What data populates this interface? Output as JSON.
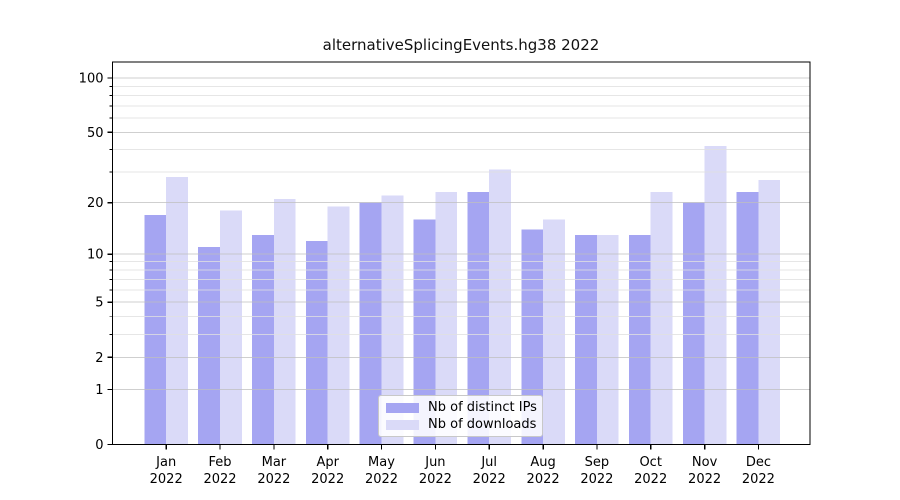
{
  "chart_data": {
    "type": "bar",
    "title": "alternativeSplicingEvents.hg38 2022",
    "categories": [
      "Jan",
      "Feb",
      "Mar",
      "Apr",
      "May",
      "Jun",
      "Jul",
      "Aug",
      "Sep",
      "Oct",
      "Nov",
      "Dec"
    ],
    "year": "2022",
    "series": [
      {
        "name": "Nb of distinct IPs",
        "color": "#a5a5f2",
        "values": [
          17,
          11,
          13,
          12,
          20,
          16,
          23,
          14,
          13,
          13,
          20,
          23
        ]
      },
      {
        "name": "Nb of downloads",
        "color": "#dadaf8",
        "values": [
          28,
          18,
          21,
          19,
          22,
          23,
          31,
          16,
          13,
          23,
          42,
          27
        ]
      }
    ],
    "yscale": "log1p",
    "ylabel": "",
    "xlabel": "",
    "y_major_ticks": [
      0,
      1,
      2,
      5,
      10,
      20,
      50,
      100
    ],
    "y_minor_gridlines": [
      3,
      4,
      6,
      7,
      8,
      9,
      30,
      40,
      60,
      70,
      80,
      90
    ],
    "grid": true,
    "legend_position": "lower center",
    "colors": {
      "axis": "#000000",
      "tick_label": "#000000",
      "grid_major": "#bfbfbf",
      "grid_minor": "#e0e0e0",
      "background": "#ffffff"
    }
  }
}
